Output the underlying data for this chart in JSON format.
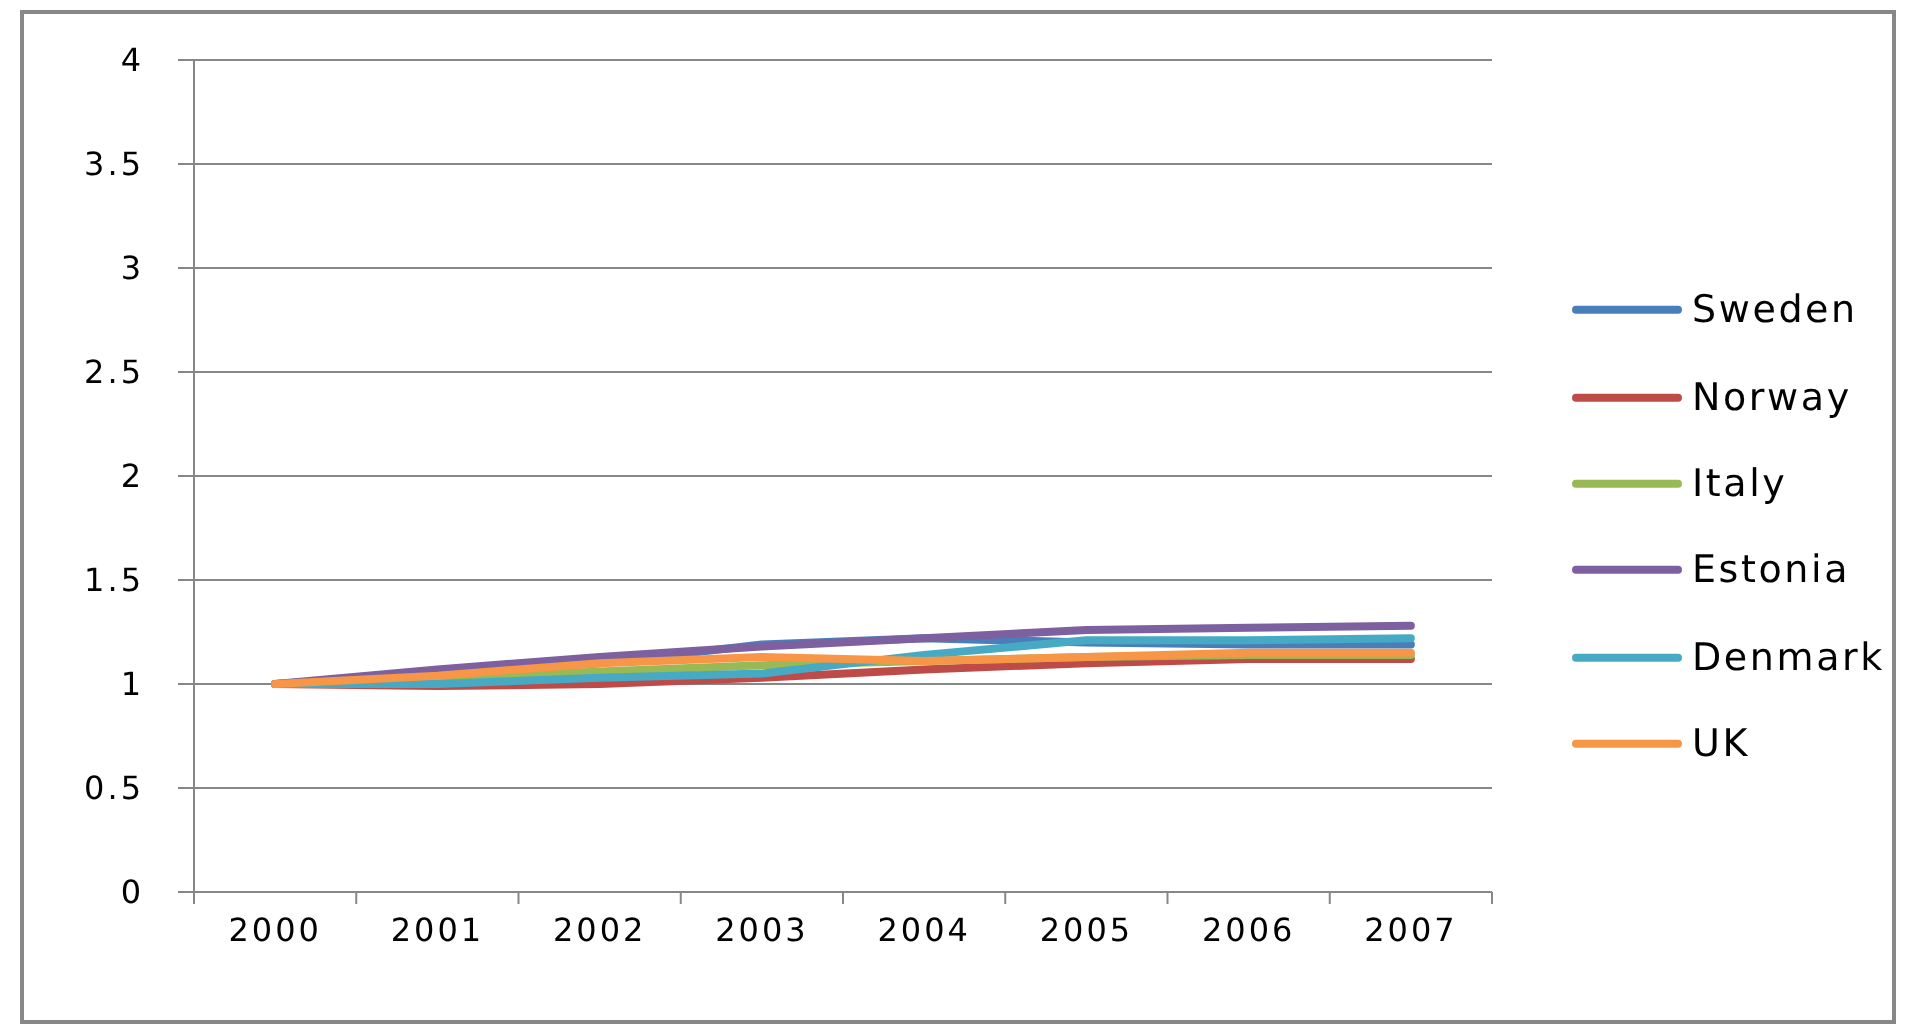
{
  "chart_data": {
    "type": "line",
    "categories": [
      "2000",
      "2001",
      "2002",
      "2003",
      "2004",
      "2005",
      "2006",
      "2007"
    ],
    "series": [
      {
        "name": "Sweden",
        "color": "#4a7ebb",
        "values": [
          1,
          1.05,
          1.1,
          1.19,
          1.22,
          1.2,
          1.19,
          1.19
        ]
      },
      {
        "name": "Norway",
        "color": "#be4b48",
        "values": [
          1,
          0.99,
          1.0,
          1.03,
          1.07,
          1.1,
          1.12,
          1.12
        ]
      },
      {
        "name": "Italy",
        "color": "#98b954",
        "values": [
          1,
          1.02,
          1.06,
          1.09,
          1.11,
          1.13,
          1.14,
          1.14
        ]
      },
      {
        "name": "Estonia",
        "color": "#7d60a0",
        "values": [
          1,
          1.07,
          1.13,
          1.18,
          1.22,
          1.26,
          1.27,
          1.28
        ]
      },
      {
        "name": "Denmark",
        "color": "#46aac5",
        "values": [
          1,
          1.0,
          1.03,
          1.05,
          1.14,
          1.21,
          1.21,
          1.22
        ]
      },
      {
        "name": "UK",
        "color": "#f79646",
        "values": [
          1,
          1.04,
          1.1,
          1.13,
          1.11,
          1.13,
          1.15,
          1.15
        ]
      }
    ],
    "ylim": [
      0,
      4
    ],
    "yticks": [
      0,
      0.5,
      1,
      1.5,
      2,
      2.5,
      3,
      3.5,
      4
    ],
    "grid": "y",
    "legend": "right",
    "marker": "none"
  }
}
